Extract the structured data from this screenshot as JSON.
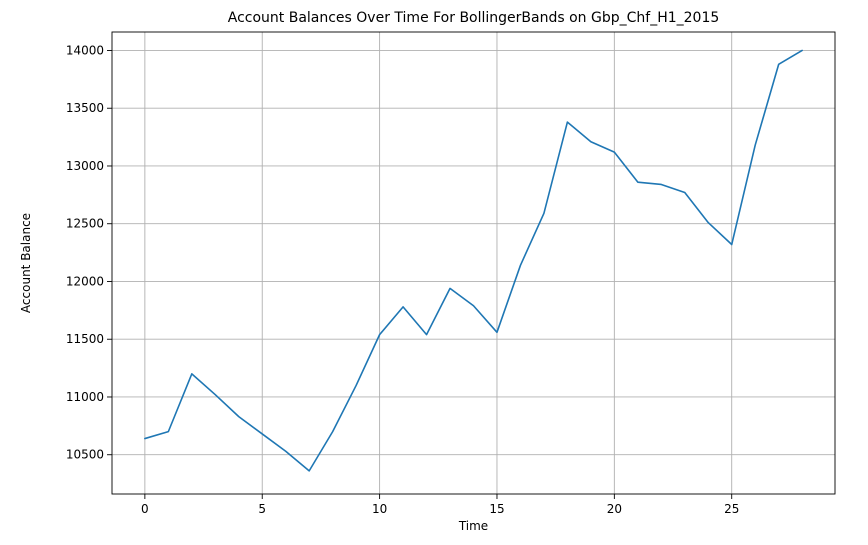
{
  "chart_data": {
    "type": "line",
    "title": "Account Balances Over Time For BollingerBands on Gbp_Chf_H1_2015",
    "xlabel": "Time",
    "ylabel": "Account Balance",
    "xlim": [
      -1.4,
      29.4
    ],
    "ylim": [
      10160,
      14160
    ],
    "xticks": [
      0,
      5,
      10,
      15,
      20,
      25
    ],
    "yticks": [
      10500,
      11000,
      11500,
      12000,
      12500,
      13000,
      13500,
      14000
    ],
    "grid": true,
    "line_color": "#1f77b4",
    "x": [
      0,
      1,
      2,
      3,
      4,
      5,
      6,
      7,
      8,
      9,
      10,
      11,
      12,
      13,
      14,
      15,
      16,
      17,
      18,
      19,
      20,
      21,
      22,
      23,
      24,
      25,
      26,
      27,
      28
    ],
    "values": [
      10640,
      10700,
      11200,
      11020,
      10830,
      10680,
      10530,
      10360,
      10700,
      11100,
      11540,
      11780,
      11540,
      11940,
      11790,
      11560,
      12140,
      12590,
      13380,
      13210,
      13120,
      12860,
      12840,
      12770,
      12510,
      12320,
      13180,
      13880,
      14000
    ]
  }
}
